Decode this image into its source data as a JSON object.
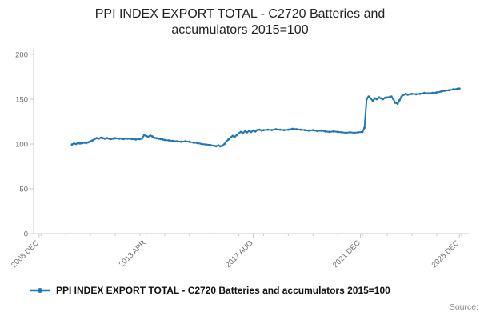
{
  "title": "PPI INDEX EXPORT TOTAL - C2720 Batteries and accumulators 2015=100",
  "legend": {
    "label": "PPI INDEX EXPORT TOTAL - C2720 Batteries and accumulators 2015=100"
  },
  "source_label": "Source:",
  "colors": {
    "line": "#1f77b4",
    "axis": "#c9c9c9",
    "tick_text": "#6e6e6e"
  },
  "chart_data": {
    "type": "line",
    "title": "PPI INDEX EXPORT TOTAL - C2720 Batteries and accumulators 2015=100",
    "xlabel": "",
    "ylabel": "",
    "legend_position": "bottom",
    "grid": false,
    "xlim": [
      2008.7,
      2026.3
    ],
    "ylim": [
      0,
      200
    ],
    "y_ticks": [
      0,
      50,
      100,
      150,
      200
    ],
    "x_ticks": [
      {
        "v": 2008.92,
        "label": "2008 DEC"
      },
      {
        "v": 2013.25,
        "label": "2013 APR"
      },
      {
        "v": 2017.58,
        "label": "2017 AUG"
      },
      {
        "v": 2021.92,
        "label": "2021 DEC"
      },
      {
        "v": 2025.92,
        "label": "2025 DEC"
      }
    ],
    "series": [
      {
        "name": "PPI INDEX EXPORT TOTAL - C2720 Batteries and accumulators 2015=100",
        "points": [
          [
            2010.25,
            99.5
          ],
          [
            2010.33,
            100.5
          ],
          [
            2010.42,
            100
          ],
          [
            2010.5,
            101
          ],
          [
            2010.58,
            100.5
          ],
          [
            2010.67,
            101
          ],
          [
            2010.75,
            101.5
          ],
          [
            2010.83,
            101
          ],
          [
            2010.92,
            102
          ],
          [
            2011.0,
            103
          ],
          [
            2011.08,
            104
          ],
          [
            2011.17,
            105.5
          ],
          [
            2011.25,
            106.5
          ],
          [
            2011.33,
            106
          ],
          [
            2011.42,
            107
          ],
          [
            2011.5,
            106.5
          ],
          [
            2011.58,
            106
          ],
          [
            2011.67,
            106.5
          ],
          [
            2011.75,
            106
          ],
          [
            2011.83,
            105.5
          ],
          [
            2011.92,
            106
          ],
          [
            2012.0,
            106.5
          ],
          [
            2012.17,
            106
          ],
          [
            2012.33,
            105.5
          ],
          [
            2012.5,
            106
          ],
          [
            2012.67,
            105.5
          ],
          [
            2012.83,
            105
          ],
          [
            2013.0,
            105.5
          ],
          [
            2013.08,
            106
          ],
          [
            2013.17,
            110
          ],
          [
            2013.25,
            109
          ],
          [
            2013.33,
            108
          ],
          [
            2013.42,
            109.5
          ],
          [
            2013.5,
            108.5
          ],
          [
            2013.58,
            107
          ],
          [
            2013.67,
            106.5
          ],
          [
            2013.75,
            106
          ],
          [
            2013.83,
            105.5
          ],
          [
            2013.92,
            105
          ],
          [
            2014.0,
            104.5
          ],
          [
            2014.17,
            104
          ],
          [
            2014.33,
            103.5
          ],
          [
            2014.5,
            103
          ],
          [
            2014.67,
            102.5
          ],
          [
            2014.83,
            103
          ],
          [
            2015.0,
            102.5
          ],
          [
            2015.17,
            101.5
          ],
          [
            2015.33,
            101
          ],
          [
            2015.5,
            100
          ],
          [
            2015.67,
            99.5
          ],
          [
            2015.83,
            99
          ],
          [
            2016.0,
            98
          ],
          [
            2016.08,
            97.5
          ],
          [
            2016.17,
            98.5
          ],
          [
            2016.25,
            97.5
          ],
          [
            2016.33,
            98
          ],
          [
            2016.42,
            100
          ],
          [
            2016.5,
            103
          ],
          [
            2016.58,
            105
          ],
          [
            2016.67,
            107.5
          ],
          [
            2016.75,
            109
          ],
          [
            2016.83,
            108
          ],
          [
            2016.92,
            110
          ],
          [
            2017.0,
            112
          ],
          [
            2017.08,
            113.5
          ],
          [
            2017.17,
            112.5
          ],
          [
            2017.25,
            114
          ],
          [
            2017.33,
            113
          ],
          [
            2017.42,
            114.5
          ],
          [
            2017.5,
            113.5
          ],
          [
            2017.58,
            115
          ],
          [
            2017.67,
            114
          ],
          [
            2017.75,
            115.5
          ],
          [
            2017.83,
            116
          ],
          [
            2017.92,
            115
          ],
          [
            2018.0,
            115.5
          ],
          [
            2018.17,
            116
          ],
          [
            2018.33,
            115.5
          ],
          [
            2018.5,
            116.5
          ],
          [
            2018.67,
            116
          ],
          [
            2018.83,
            115.5
          ],
          [
            2019.0,
            116
          ],
          [
            2019.17,
            117
          ],
          [
            2019.33,
            116.5
          ],
          [
            2019.5,
            116
          ],
          [
            2019.67,
            115.5
          ],
          [
            2019.83,
            115
          ],
          [
            2020.0,
            115.5
          ],
          [
            2020.17,
            114.5
          ],
          [
            2020.33,
            115
          ],
          [
            2020.5,
            114
          ],
          [
            2020.67,
            113.5
          ],
          [
            2020.83,
            114
          ],
          [
            2021.0,
            113.5
          ],
          [
            2021.17,
            113
          ],
          [
            2021.33,
            112.5
          ],
          [
            2021.5,
            113
          ],
          [
            2021.67,
            112.5
          ],
          [
            2021.83,
            113
          ],
          [
            2022.0,
            113.5
          ],
          [
            2022.08,
            118
          ],
          [
            2022.17,
            150
          ],
          [
            2022.25,
            153
          ],
          [
            2022.33,
            151
          ],
          [
            2022.42,
            148
          ],
          [
            2022.5,
            151
          ],
          [
            2022.58,
            150
          ],
          [
            2022.67,
            152
          ],
          [
            2022.75,
            151
          ],
          [
            2022.83,
            150
          ],
          [
            2022.92,
            151.5
          ],
          [
            2023.0,
            152
          ],
          [
            2023.17,
            153
          ],
          [
            2023.25,
            150
          ],
          [
            2023.33,
            146
          ],
          [
            2023.42,
            145
          ],
          [
            2023.5,
            149
          ],
          [
            2023.58,
            153
          ],
          [
            2023.67,
            155
          ],
          [
            2023.75,
            156
          ],
          [
            2023.83,
            155
          ],
          [
            2023.92,
            155.5
          ],
          [
            2024.0,
            156
          ],
          [
            2024.17,
            155.5
          ],
          [
            2024.33,
            156
          ],
          [
            2024.5,
            157
          ],
          [
            2024.67,
            156.5
          ],
          [
            2024.83,
            157
          ],
          [
            2025.0,
            157.5
          ],
          [
            2025.17,
            158.5
          ],
          [
            2025.33,
            159.5
          ],
          [
            2025.5,
            160
          ],
          [
            2025.67,
            161
          ],
          [
            2025.83,
            161.5
          ],
          [
            2025.92,
            162
          ]
        ]
      }
    ]
  }
}
